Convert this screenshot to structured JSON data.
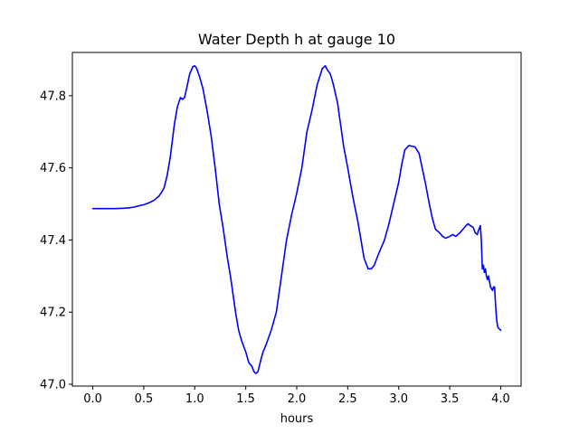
{
  "chart_data": {
    "type": "line",
    "title": "Water Depth h at gauge 10",
    "xlabel": "hours",
    "ylabel": "",
    "xlim": [
      -0.2,
      4.2
    ],
    "ylim": [
      46.995,
      47.92
    ],
    "xticks": [
      0.0,
      0.5,
      1.0,
      1.5,
      2.0,
      2.5,
      3.0,
      3.5,
      4.0
    ],
    "xtick_labels": [
      "0.0",
      "0.5",
      "1.0",
      "1.5",
      "2.0",
      "2.5",
      "3.0",
      "3.5",
      "4.0"
    ],
    "yticks": [
      47.0,
      47.2,
      47.4,
      47.6,
      47.8
    ],
    "ytick_labels": [
      "47.0",
      "47.2",
      "47.4",
      "47.6",
      "47.8"
    ],
    "grid": false,
    "series": [
      {
        "color": "#0000ff",
        "x": [
          0.0,
          0.1,
          0.2,
          0.3,
          0.35,
          0.4,
          0.5,
          0.55,
          0.6,
          0.65,
          0.68,
          0.7,
          0.73,
          0.76,
          0.8,
          0.83,
          0.86,
          0.88,
          0.9,
          0.92,
          0.95,
          0.98,
          1.0,
          1.02,
          1.05,
          1.08,
          1.12,
          1.16,
          1.2,
          1.24,
          1.28,
          1.32,
          1.35,
          1.38,
          1.4,
          1.43,
          1.46,
          1.5,
          1.53,
          1.56,
          1.58,
          1.6,
          1.62,
          1.65,
          1.67,
          1.7,
          1.75,
          1.8,
          1.85,
          1.9,
          1.95,
          2.0,
          2.05,
          2.1,
          2.15,
          2.2,
          2.25,
          2.28,
          2.3,
          2.33,
          2.36,
          2.4,
          2.43,
          2.46,
          2.5,
          2.55,
          2.6,
          2.63,
          2.66,
          2.7,
          2.73,
          2.76,
          2.8,
          2.83,
          2.86,
          2.9,
          2.95,
          3.0,
          3.03,
          3.06,
          3.1,
          3.13,
          3.16,
          3.2,
          3.23,
          3.26,
          3.3,
          3.33,
          3.36,
          3.4,
          3.43,
          3.46,
          3.5,
          3.53,
          3.56,
          3.6,
          3.63,
          3.66,
          3.68,
          3.7,
          3.73,
          3.75,
          3.77,
          3.78,
          3.8,
          3.81,
          3.82,
          3.83,
          3.84,
          3.85,
          3.86,
          3.87,
          3.88,
          3.9,
          3.92,
          3.93,
          3.94,
          3.95,
          3.96,
          3.97,
          3.98,
          4.0
        ],
        "y": [
          47.487,
          47.487,
          47.487,
          47.488,
          47.489,
          47.491,
          47.498,
          47.503,
          47.51,
          47.522,
          47.535,
          47.545,
          47.58,
          47.63,
          47.72,
          47.77,
          47.795,
          47.79,
          47.795,
          47.82,
          47.86,
          47.88,
          47.883,
          47.875,
          47.85,
          47.82,
          47.76,
          47.69,
          47.6,
          47.5,
          47.43,
          47.35,
          47.3,
          47.24,
          47.2,
          47.15,
          47.12,
          47.09,
          47.06,
          47.05,
          47.035,
          47.03,
          47.035,
          47.07,
          47.09,
          47.11,
          47.15,
          47.2,
          47.3,
          47.4,
          47.47,
          47.53,
          47.6,
          47.7,
          47.76,
          47.83,
          47.875,
          47.883,
          47.872,
          47.86,
          47.83,
          47.78,
          47.72,
          47.66,
          47.6,
          47.52,
          47.45,
          47.4,
          47.35,
          47.32,
          47.32,
          47.33,
          47.36,
          47.38,
          47.4,
          47.44,
          47.5,
          47.56,
          47.61,
          47.65,
          47.662,
          47.66,
          47.658,
          47.64,
          47.6,
          47.56,
          47.5,
          47.46,
          47.43,
          47.42,
          47.41,
          47.405,
          47.41,
          47.415,
          47.41,
          47.42,
          47.43,
          47.44,
          47.445,
          47.44,
          47.435,
          47.42,
          47.415,
          47.425,
          47.44,
          47.4,
          47.32,
          47.33,
          47.31,
          47.32,
          47.3,
          47.29,
          47.3,
          47.27,
          47.26,
          47.27,
          47.27,
          47.22,
          47.18,
          47.16,
          47.155,
          47.15
        ]
      }
    ]
  }
}
